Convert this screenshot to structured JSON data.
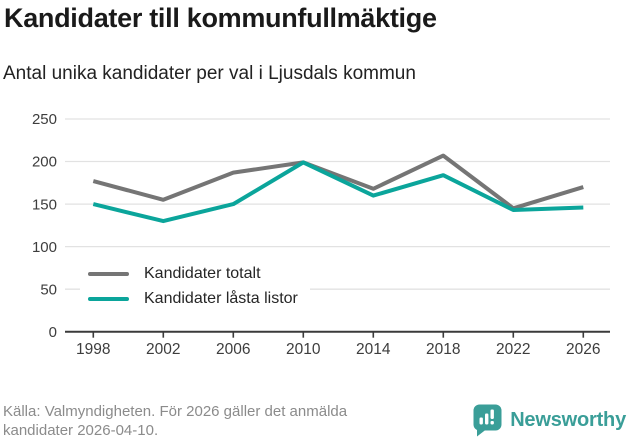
{
  "header": {
    "title": "Kandidater till kommunfullmäktige",
    "subtitle": "Antal unika kandidater per val i Ljusdals kommun"
  },
  "chart_data": {
    "type": "line",
    "title": "Kandidater till kommunfullmäktige",
    "subtitle": "Antal unika kandidater per val i Ljusdals kommun",
    "x": [
      1998,
      2002,
      2006,
      2010,
      2014,
      2018,
      2022,
      2026
    ],
    "series": [
      {
        "name": "Kandidater totalt",
        "color": "#757575",
        "values": [
          177,
          155,
          187,
          199,
          168,
          207,
          145,
          170
        ]
      },
      {
        "name": "Kandidater låsta listor",
        "color": "#0ba59b",
        "values": [
          150,
          130,
          150,
          199,
          160,
          184,
          143,
          146
        ]
      }
    ],
    "xlabel": "",
    "ylabel": "",
    "ylim": [
      0,
      250
    ],
    "yticks": [
      0,
      50,
      100,
      150,
      200,
      250
    ],
    "grid": "horizontal-light",
    "legend_position": "inside-bottom-left"
  },
  "footer": {
    "source_line1": "Källa: Valmyndigheten. För 2026 gäller det anmälda",
    "source_line2": "kandidater 2026-04-10."
  },
  "brand": {
    "name": "Newsworthy",
    "color": "#3a9e98"
  },
  "colors": {
    "axis": "#3a3a3a",
    "grid": "#e2e2e2",
    "tick_text": "#3d3d3d",
    "title_text": "#1a1a1a",
    "footer_text": "#8b8b8b"
  }
}
